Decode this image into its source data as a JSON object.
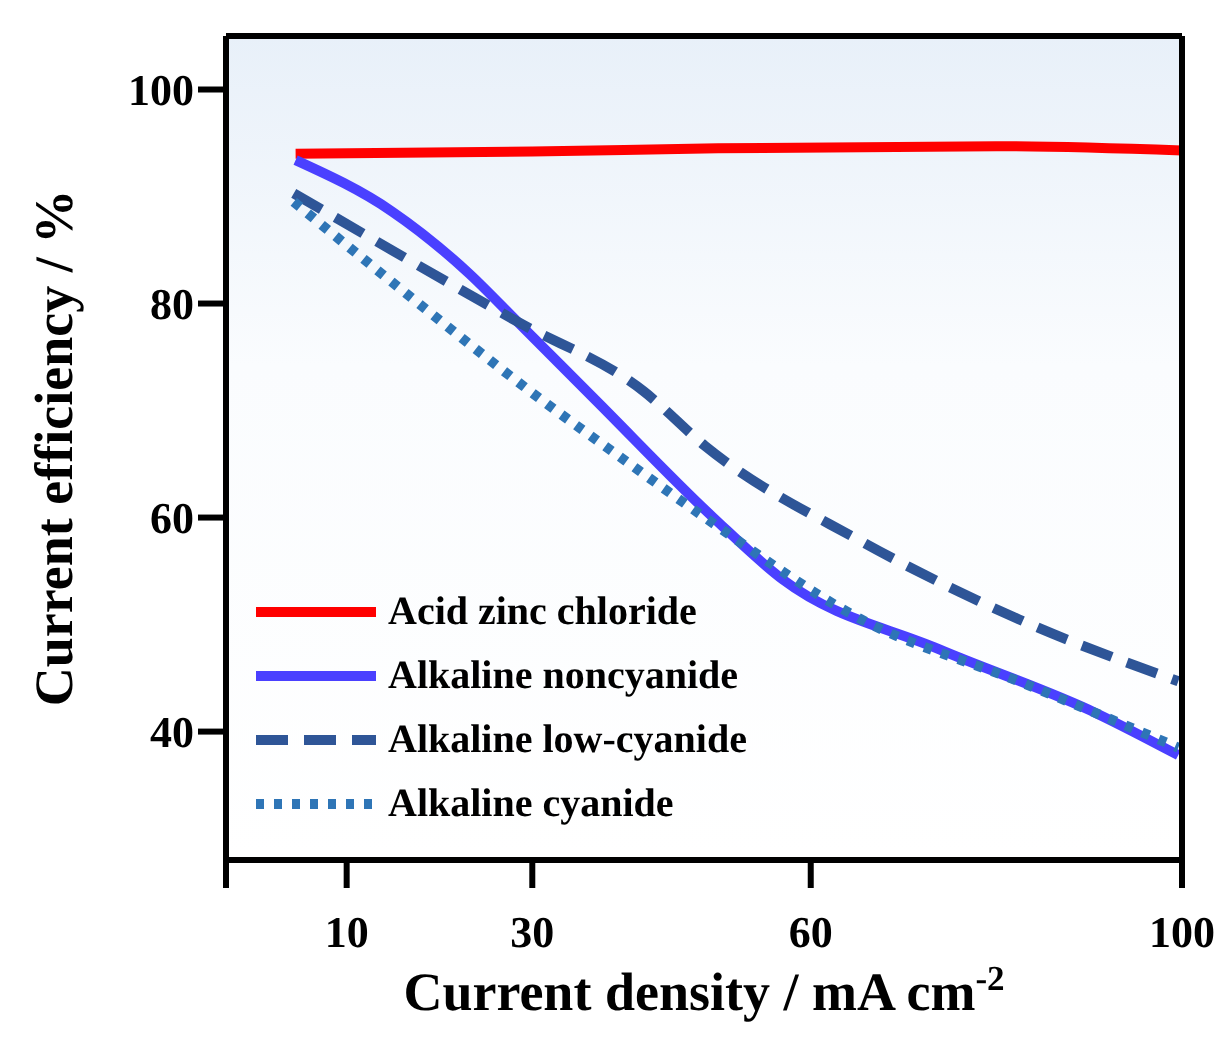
{
  "chart_data": {
    "type": "line",
    "xlabel": "Current density / mA cm$^{-2}$",
    "ylabel": "Current efficiency / %",
    "xlim": [
      -3,
      100
    ],
    "xticks": [
      {
        "value": -3,
        "label": null
      },
      10,
      30,
      60,
      100
    ],
    "ylim": [
      28,
      105
    ],
    "yticks": [
      40,
      60,
      80,
      100
    ],
    "legend": "bottom left",
    "series": [
      {
        "name": "Acid zinc chloride",
        "color": "#ff0000",
        "line_style": "solid",
        "x": [
          4.5,
          30,
          50,
          80,
          100
        ],
        "values": [
          94,
          94.2,
          94.5,
          94.7,
          94.3
        ]
      },
      {
        "name": "Alkaline noncyanide",
        "color": "#4a40ff",
        "line_style": "solid",
        "x": [
          4.5,
          14.9,
          23.2,
          28.4,
          36.8,
          49.5,
          57,
          73.8,
          90.8,
          99.6
        ],
        "values": [
          93.4,
          88.6,
          82.8,
          78.3,
          71,
          60,
          54.2,
          47.7,
          41.7,
          37.8
        ]
      },
      {
        "name": "Alkaline low-cyanide",
        "color": "#2e5597",
        "line_style": "dashed",
        "x": [
          4.3,
          28.4,
          42,
          48.6,
          65.4,
          82.4,
          99.6
        ],
        "values": [
          90.3,
          78.3,
          71.8,
          66.7,
          57.8,
          50.5,
          44.7
        ]
      },
      {
        "name": "Alkaline cyanide",
        "color": "#2e75b6",
        "line_style": "dotted",
        "x": [
          4.3,
          14.9,
          31,
          40.2,
          48.6,
          65.4,
          82.4,
          99.6
        ],
        "values": [
          89.5,
          82,
          71,
          65.2,
          60,
          50.5,
          44.7,
          38.5
        ]
      }
    ]
  }
}
